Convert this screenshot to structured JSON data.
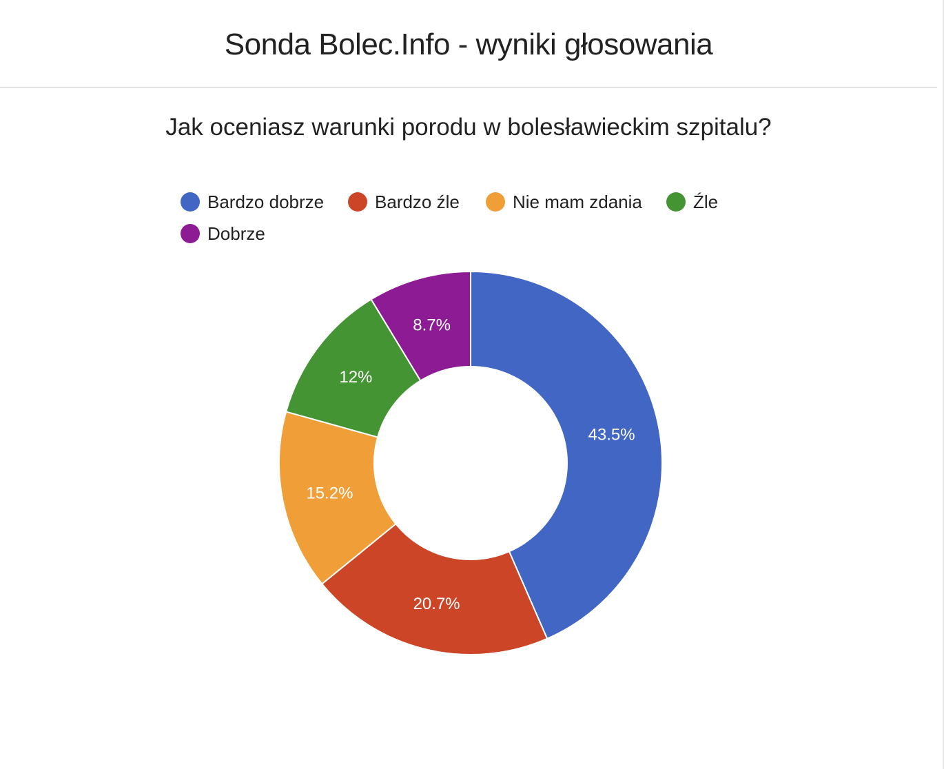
{
  "header": {
    "title": "Sonda Bolec.Info - wyniki głosowania"
  },
  "chart_data": {
    "type": "pie",
    "donut": true,
    "title": "Jak oceniasz warunki porodu w bolesławieckim szpitalu?",
    "legend_position": "top-left",
    "unit": "%",
    "categories": [
      "Bardzo dobrze",
      "Bardzo źle",
      "Nie mam zdania",
      "Źle",
      "Dobrze"
    ],
    "values": [
      43.5,
      20.7,
      15.2,
      12,
      8.7
    ],
    "labels": [
      "43.5%",
      "20.7%",
      "15.2%",
      "12%",
      "8.7%"
    ],
    "colors": [
      "#4166c4",
      "#cc4527",
      "#f09e38",
      "#449434",
      "#8d1c94"
    ]
  }
}
